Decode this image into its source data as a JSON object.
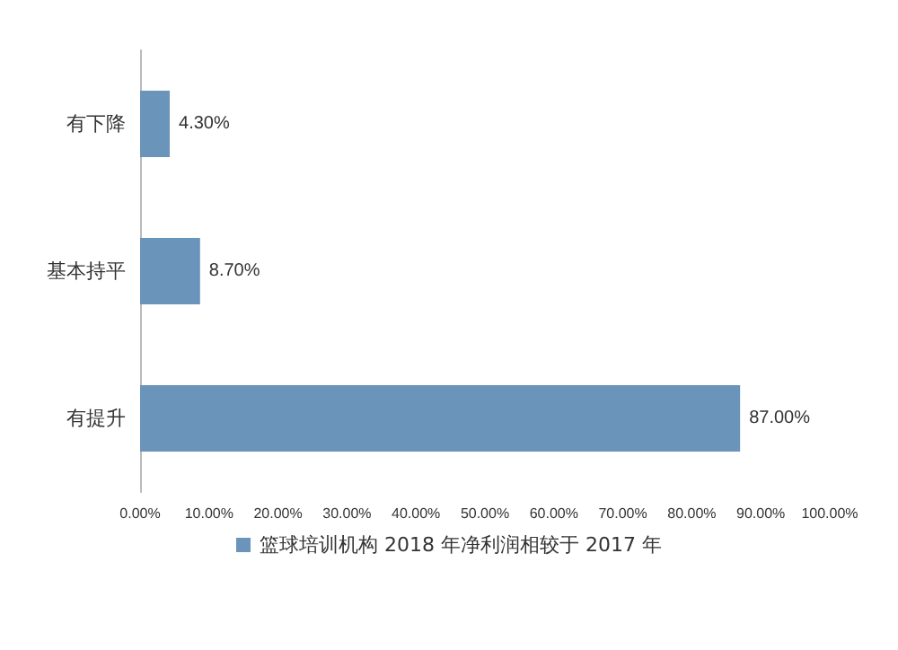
{
  "chart_data": {
    "type": "bar",
    "orientation": "horizontal",
    "categories": [
      "有下降",
      "基本持平",
      "有提升"
    ],
    "series": [
      {
        "name": "篮球培训机构 2018 年净利润相较于 2017 年",
        "color": "#6a94ba",
        "values": [
          4.3,
          8.7,
          87
        ],
        "value_labels": [
          "4.30%",
          "8.70%",
          "87.00%"
        ]
      }
    ],
    "xlim": [
      0,
      100
    ],
    "xticks": [
      {
        "value": 0,
        "label": "0.00%"
      },
      {
        "value": 10,
        "label": "10.00%"
      },
      {
        "value": 20,
        "label": "20.00%"
      },
      {
        "value": 30,
        "label": "30.00%"
      },
      {
        "value": 40,
        "label": "40.00%"
      },
      {
        "value": 50,
        "label": "50.00%"
      },
      {
        "value": 60,
        "label": "60.00%"
      },
      {
        "value": 70,
        "label": "70.00%"
      },
      {
        "value": 80,
        "label": "80.00%"
      },
      {
        "value": 90,
        "label": "90.00%"
      },
      {
        "value": 100,
        "label": "100.00%"
      }
    ],
    "legend": "bottom"
  }
}
